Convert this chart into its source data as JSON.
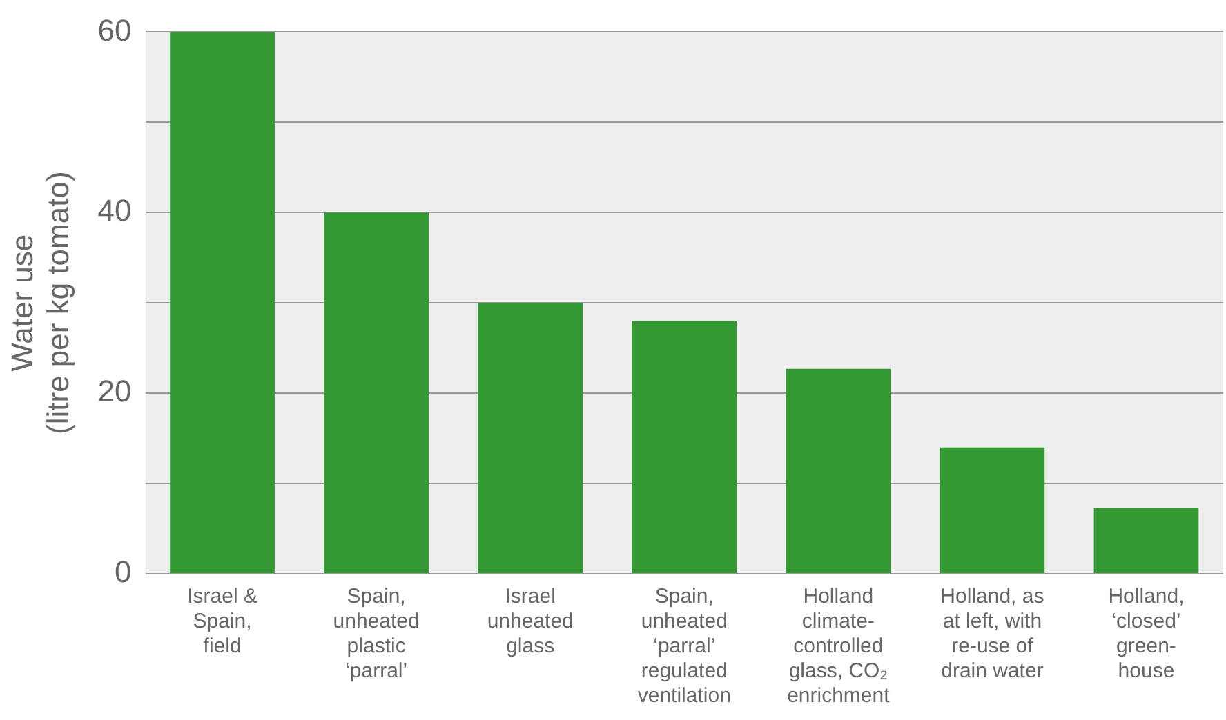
{
  "chart_data": {
    "type": "bar",
    "ylabel": "Water use\n(litre per kg tomato)",
    "categories": [
      "Israel &\nSpain,\nfield",
      "Spain,\nunheated\nplastic\n‘parral’",
      "Israel\nunheated\nglass",
      "Spain,\nunheated\n‘parral’\nregulated\nventilation",
      "Holland\nclimate-\ncontrolled\nglass, CO₂\nenrichment",
      "Holland, as\nat left, with\nre-use of\ndrain water",
      "Holland,\n‘closed’\ngreen-\nhouse"
    ],
    "values": [
      60,
      40,
      30,
      28,
      22.7,
      14,
      7.3
    ],
    "color": "#339933",
    "ylim": [
      0,
      60
    ],
    "yticks": [
      0,
      {
        "value": 10,
        "label": null
      },
      20,
      {
        "value": 30,
        "label": null
      },
      40,
      {
        "value": 50,
        "label": null
      },
      60
    ],
    "grid": "y",
    "legend": false
  }
}
